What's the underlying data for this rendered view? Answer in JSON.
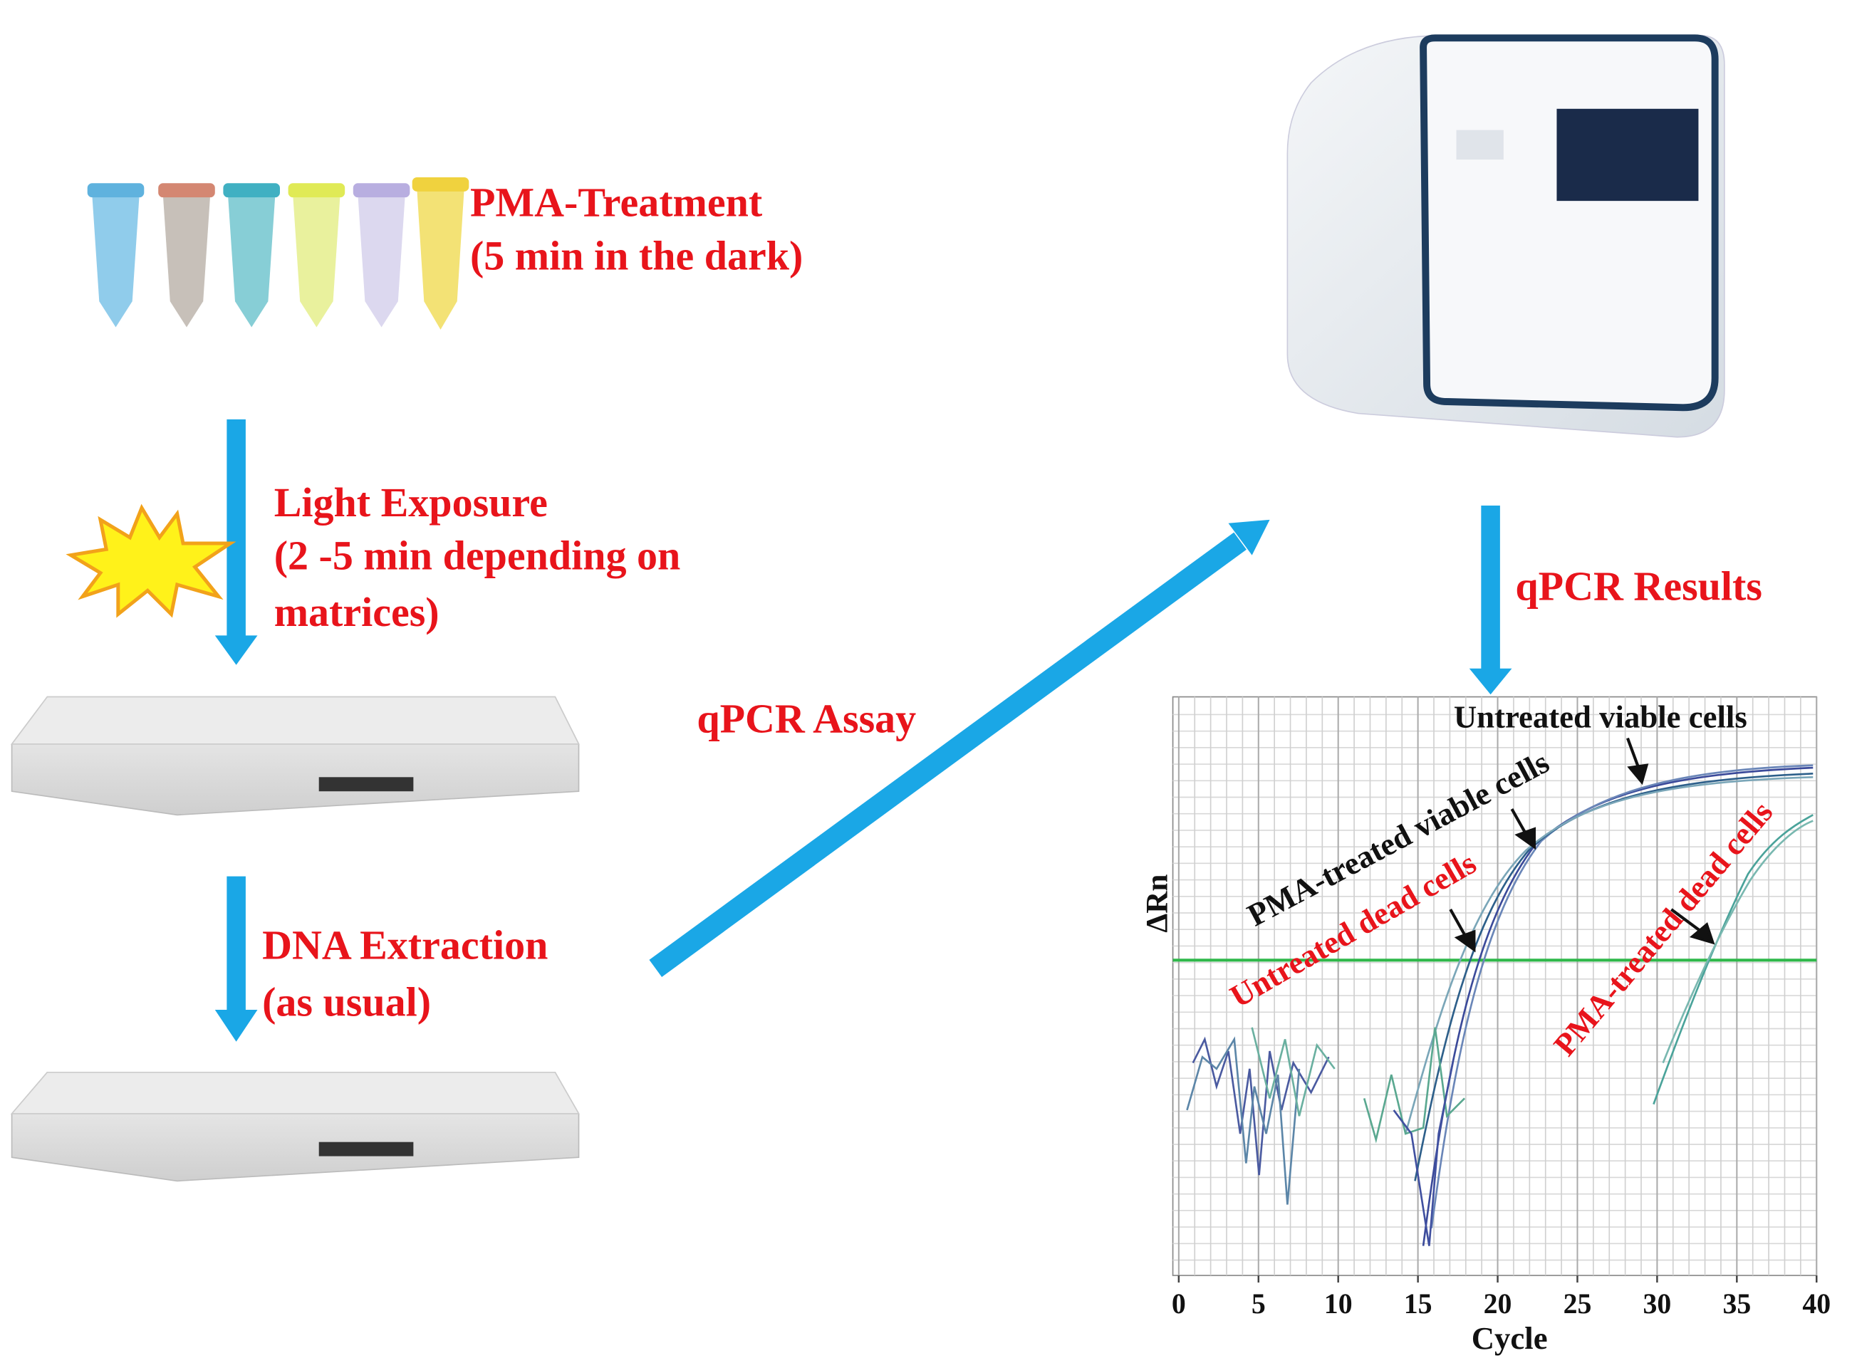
{
  "steps": {
    "pma": [
      "PMA-Treatment",
      "(5 min in the dark)"
    ],
    "light": [
      "Light Exposure",
      "(2 -5 min depending on",
      "matrices)"
    ],
    "dna": [
      "DNA Extraction",
      "(as usual)"
    ],
    "assay": "qPCR Assay",
    "results": "qPCR Results"
  },
  "plot": {
    "ylabel": "ΔRn",
    "xlabel": "Cycle",
    "xlim": [
      0,
      40
    ],
    "xticks": [
      0,
      5,
      10,
      15,
      20,
      25,
      30,
      35,
      40
    ],
    "annotations": {
      "untreated_viable": "Untreated viable cells",
      "pma_viable": "PMA-treated viable cells",
      "untreated_dead": "Untreated dead cells",
      "pma_dead": "PMA-treated dead cells"
    }
  }
}
